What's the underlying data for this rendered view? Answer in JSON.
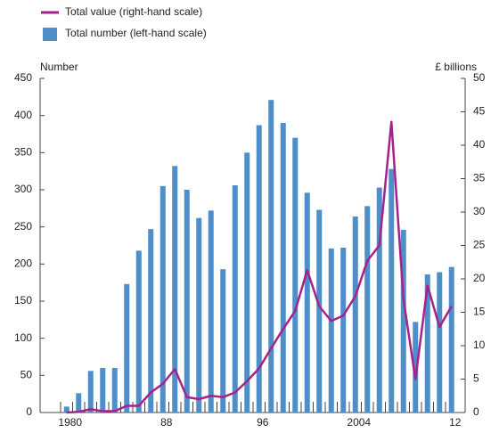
{
  "chart_data": {
    "type": "bar-line",
    "legend": "top-left",
    "y_label": "Number",
    "y2_label": "£ billions",
    "categories": [
      "1980",
      null,
      null,
      null,
      null,
      null,
      null,
      null,
      "88",
      null,
      null,
      null,
      null,
      null,
      null,
      null,
      "96",
      null,
      null,
      null,
      null,
      null,
      null,
      null,
      "2004",
      null,
      null,
      null,
      null,
      null,
      null,
      null,
      "12"
    ],
    "series": [
      {
        "name": "Total value (right-hand scale)",
        "color": "#a6228b",
        "kind": "line",
        "axis": "y2",
        "values": [
          0,
          0.1,
          0.5,
          0.2,
          0.2,
          1,
          1,
          3,
          4.3,
          6.5,
          2.3,
          2,
          2.5,
          2.3,
          3,
          4.7,
          6.6,
          9.6,
          12.5,
          15.2,
          21.3,
          15.9,
          13.7,
          14.5,
          17.4,
          22.7,
          25,
          43.5,
          17,
          5,
          19,
          12.8,
          15.9
        ]
      },
      {
        "name": "Total number (left-hand scale)",
        "color": "#4f8fc9",
        "kind": "bar",
        "axis": "y",
        "values": [
          8,
          26,
          56,
          60,
          60,
          173,
          218,
          247,
          305,
          332,
          300,
          262,
          272,
          193,
          306,
          350,
          387,
          421,
          390,
          370,
          296,
          273,
          221,
          222,
          264,
          278,
          303,
          328,
          246,
          122,
          186,
          189,
          196
        ]
      }
    ],
    "ylim": [
      0,
      450
    ],
    "yticks": [
      0,
      50,
      100,
      150,
      200,
      250,
      300,
      350,
      400,
      450
    ],
    "y2lim": [
      0,
      50
    ],
    "y2ticks": [
      0,
      5,
      10,
      15,
      20,
      25,
      30,
      35,
      40,
      45,
      50
    ]
  }
}
